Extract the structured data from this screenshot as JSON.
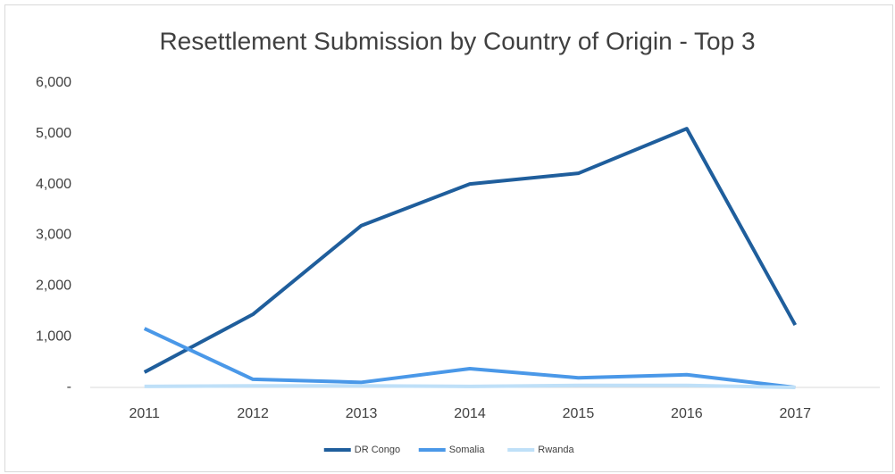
{
  "chart_data": {
    "type": "line",
    "title": "Resettlement Submission by Country of Origin - Top 3",
    "categories": [
      "2011",
      "2012",
      "2013",
      "2014",
      "2015",
      "2016",
      "2017"
    ],
    "series": [
      {
        "name": "DR Congo",
        "color": "#1f5e9c",
        "values": [
          300,
          1440,
          3190,
          4010,
          4220,
          5100,
          1230
        ]
      },
      {
        "name": "Somalia",
        "color": "#4a98e8",
        "values": [
          1160,
          160,
          100,
          370,
          190,
          250,
          0
        ]
      },
      {
        "name": "Rwanda",
        "color": "#bfe0f8",
        "values": [
          20,
          30,
          30,
          20,
          40,
          40,
          0
        ]
      }
    ],
    "ylim": [
      0,
      6000
    ],
    "yticks": [
      {
        "value": 0,
        "label": "-"
      },
      {
        "value": 1000,
        "label": "1,000"
      },
      {
        "value": 2000,
        "label": "2,000"
      },
      {
        "value": 3000,
        "label": "3,000"
      },
      {
        "value": 4000,
        "label": "4,000"
      },
      {
        "value": 5000,
        "label": "5,000"
      },
      {
        "value": 6000,
        "label": "6,000"
      }
    ],
    "grid": false,
    "legend": "bottom"
  }
}
